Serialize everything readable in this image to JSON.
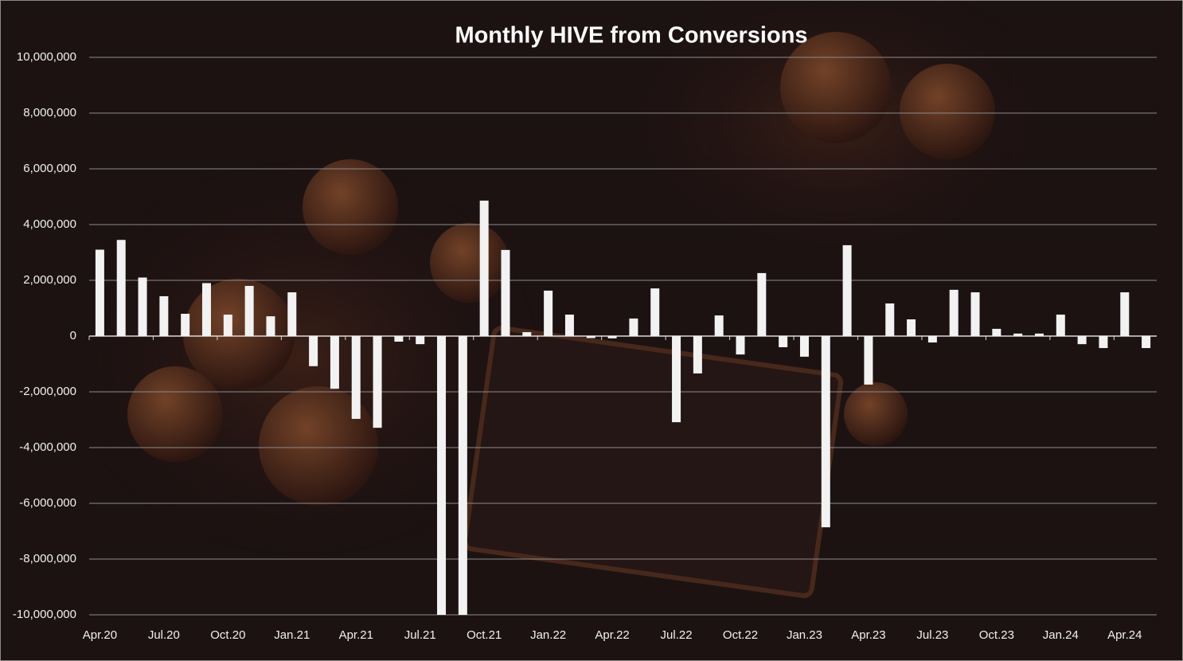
{
  "chart_data": {
    "type": "bar",
    "title": "Monthly HIVE from Conversions",
    "categories": [
      "Apr.20",
      null,
      null,
      "Jul.20",
      null,
      null,
      "Oct.20",
      null,
      null,
      "Jan.21",
      null,
      null,
      "Apr.21",
      null,
      null,
      "Jul.21",
      null,
      null,
      "Oct.21",
      null,
      null,
      "Jan.22",
      null,
      null,
      "Apr.22",
      null,
      null,
      "Jul.22",
      null,
      null,
      "Oct.22",
      null,
      null,
      "Jan.23",
      null,
      null,
      "Apr.23",
      null,
      null,
      "Jul.23",
      null,
      null,
      "Oct.23",
      null,
      null,
      "Jan.24",
      null,
      null,
      "Apr.24",
      null
    ],
    "values": [
      3100000,
      3450000,
      2100000,
      1430000,
      800000,
      1900000,
      770000,
      1800000,
      710000,
      1570000,
      -1080000,
      -1890000,
      -2970000,
      -3290000,
      -200000,
      -290000,
      -10000000,
      -10000000,
      4860000,
      3090000,
      140000,
      1630000,
      770000,
      -70000,
      -80000,
      630000,
      1710000,
      -3090000,
      -1340000,
      740000,
      -660000,
      2260000,
      -400000,
      -740000,
      -6860000,
      3260000,
      -1740000,
      1170000,
      600000,
      -230000,
      1660000,
      1570000,
      260000,
      90000,
      90000,
      770000,
      -290000,
      -430000,
      1570000,
      -430000
    ],
    "color": "#f2f2f2",
    "ylim": [
      -10000000,
      10000000
    ],
    "yticks": [
      {
        "value": -10000000,
        "label": "-10,000,000"
      },
      {
        "value": -8000000,
        "label": "-8,000,000"
      },
      {
        "value": -6000000,
        "label": "-6,000,000"
      },
      {
        "value": -4000000,
        "label": "-4,000,000"
      },
      {
        "value": -2000000,
        "label": "-2,000,000"
      },
      0,
      {
        "value": 2000000,
        "label": "2,000,000"
      },
      {
        "value": 4000000,
        "label": "4,000,000"
      },
      {
        "value": 6000000,
        "label": "6,000,000"
      },
      {
        "value": 8000000,
        "label": "8,000,000"
      },
      {
        "value": 10000000,
        "label": "10,000,000"
      }
    ],
    "grid": true
  }
}
